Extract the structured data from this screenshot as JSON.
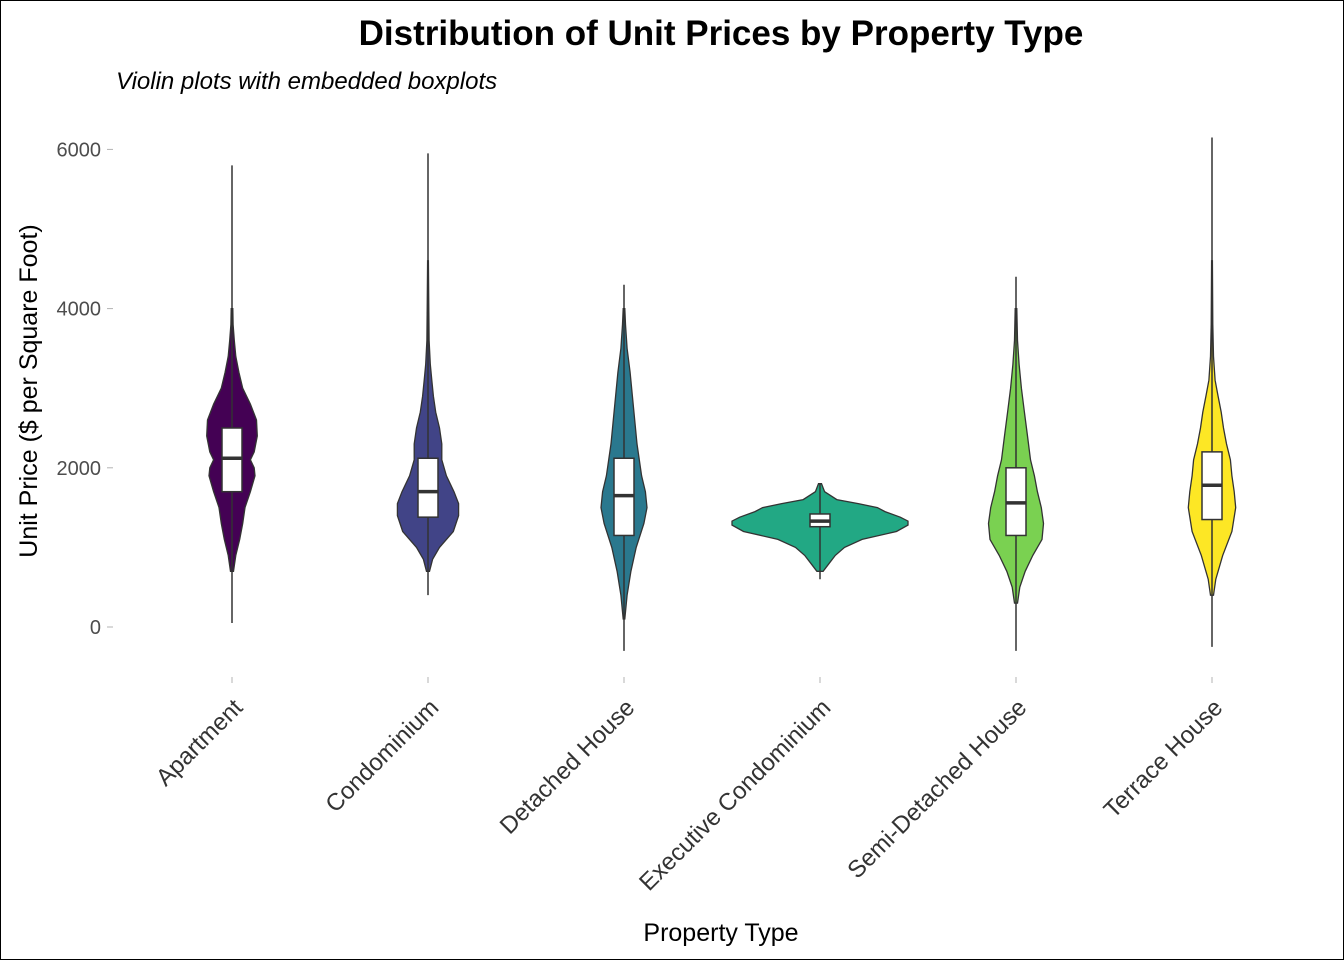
{
  "chart_data": {
    "type": "violin",
    "title": "Distribution of Unit Prices by Property Type",
    "subtitle": "Violin plots with embedded boxplots",
    "xlabel": "Property Type",
    "ylabel": "Unit Price ($ per Square Foot)",
    "ylim": [
      -300,
      6200
    ],
    "yticks": [
      0,
      2000,
      4000,
      6000
    ],
    "grid": false,
    "legend": "none",
    "categories": [
      "Apartment",
      "Condominium",
      "Detached House",
      "Executive Condominium",
      "Semi-Detached House",
      "Terrace House"
    ],
    "series": [
      {
        "category": "Apartment",
        "color": "#440154",
        "min": 50,
        "max": 5800,
        "q1": 1700,
        "median": 2120,
        "q3": 2500,
        "density": [
          [
            700,
            0.02
          ],
          [
            900,
            0.05
          ],
          [
            1100,
            0.1
          ],
          [
            1300,
            0.14
          ],
          [
            1500,
            0.17
          ],
          [
            1700,
            0.24
          ],
          [
            1900,
            0.3
          ],
          [
            2000,
            0.29
          ],
          [
            2100,
            0.24
          ],
          [
            2200,
            0.29
          ],
          [
            2400,
            0.33
          ],
          [
            2600,
            0.32
          ],
          [
            2800,
            0.24
          ],
          [
            3000,
            0.14
          ],
          [
            3200,
            0.09
          ],
          [
            3400,
            0.05
          ],
          [
            3600,
            0.03
          ],
          [
            3800,
            0.015
          ],
          [
            4000,
            0.01
          ]
        ]
      },
      {
        "category": "Condominium",
        "color": "#414487",
        "min": 400,
        "max": 5950,
        "q1": 1380,
        "median": 1700,
        "q3": 2120,
        "density": [
          [
            700,
            0.02
          ],
          [
            850,
            0.06
          ],
          [
            1000,
            0.15
          ],
          [
            1200,
            0.33
          ],
          [
            1400,
            0.4
          ],
          [
            1550,
            0.4
          ],
          [
            1700,
            0.34
          ],
          [
            1900,
            0.24
          ],
          [
            2100,
            0.18
          ],
          [
            2300,
            0.18
          ],
          [
            2500,
            0.15
          ],
          [
            2700,
            0.1
          ],
          [
            2900,
            0.07
          ],
          [
            3100,
            0.05
          ],
          [
            3300,
            0.03
          ],
          [
            3600,
            0.015
          ],
          [
            4000,
            0.01
          ],
          [
            4600,
            0.005
          ]
        ]
      },
      {
        "category": "Detached House",
        "color": "#2A788E",
        "min": -300,
        "max": 4300,
        "q1": 1150,
        "median": 1650,
        "q3": 2120,
        "density": [
          [
            100,
            0.01
          ],
          [
            400,
            0.04
          ],
          [
            700,
            0.09
          ],
          [
            1000,
            0.16
          ],
          [
            1300,
            0.26
          ],
          [
            1500,
            0.3
          ],
          [
            1700,
            0.28
          ],
          [
            1900,
            0.23
          ],
          [
            2100,
            0.2
          ],
          [
            2300,
            0.17
          ],
          [
            2600,
            0.14
          ],
          [
            2900,
            0.11
          ],
          [
            3200,
            0.08
          ],
          [
            3500,
            0.04
          ],
          [
            3800,
            0.02
          ],
          [
            4000,
            0.01
          ]
        ]
      },
      {
        "category": "Executive Condominium",
        "color": "#22A884",
        "min": 600,
        "max": 1800,
        "q1": 1260,
        "median": 1330,
        "q3": 1420,
        "density": [
          [
            700,
            0.04
          ],
          [
            800,
            0.12
          ],
          [
            900,
            0.2
          ],
          [
            1000,
            0.32
          ],
          [
            1100,
            0.55
          ],
          [
            1200,
            1.0
          ],
          [
            1280,
            1.15
          ],
          [
            1330,
            1.15
          ],
          [
            1380,
            1.05
          ],
          [
            1450,
            0.85
          ],
          [
            1500,
            0.75
          ],
          [
            1550,
            0.5
          ],
          [
            1600,
            0.22
          ],
          [
            1700,
            0.06
          ],
          [
            1800,
            0.02
          ]
        ]
      },
      {
        "category": "Semi-Detached House",
        "color": "#7AD151",
        "min": -300,
        "max": 4400,
        "q1": 1150,
        "median": 1560,
        "q3": 2000,
        "density": [
          [
            300,
            0.02
          ],
          [
            500,
            0.05
          ],
          [
            700,
            0.12
          ],
          [
            900,
            0.22
          ],
          [
            1100,
            0.34
          ],
          [
            1300,
            0.36
          ],
          [
            1500,
            0.33
          ],
          [
            1700,
            0.28
          ],
          [
            1900,
            0.24
          ],
          [
            2100,
            0.19
          ],
          [
            2400,
            0.15
          ],
          [
            2700,
            0.11
          ],
          [
            3000,
            0.07
          ],
          [
            3300,
            0.04
          ],
          [
            3600,
            0.02
          ],
          [
            4000,
            0.01
          ]
        ]
      },
      {
        "category": "Terrace House",
        "color": "#FDE725",
        "min": -250,
        "max": 6150,
        "q1": 1350,
        "median": 1780,
        "q3": 2200,
        "density": [
          [
            400,
            0.02
          ],
          [
            600,
            0.05
          ],
          [
            900,
            0.14
          ],
          [
            1200,
            0.26
          ],
          [
            1500,
            0.31
          ],
          [
            1700,
            0.29
          ],
          [
            1900,
            0.26
          ],
          [
            2100,
            0.24
          ],
          [
            2300,
            0.19
          ],
          [
            2500,
            0.15
          ],
          [
            2700,
            0.12
          ],
          [
            2900,
            0.08
          ],
          [
            3100,
            0.04
          ],
          [
            3400,
            0.02
          ],
          [
            3800,
            0.01
          ],
          [
            4600,
            0.005
          ]
        ]
      }
    ]
  }
}
